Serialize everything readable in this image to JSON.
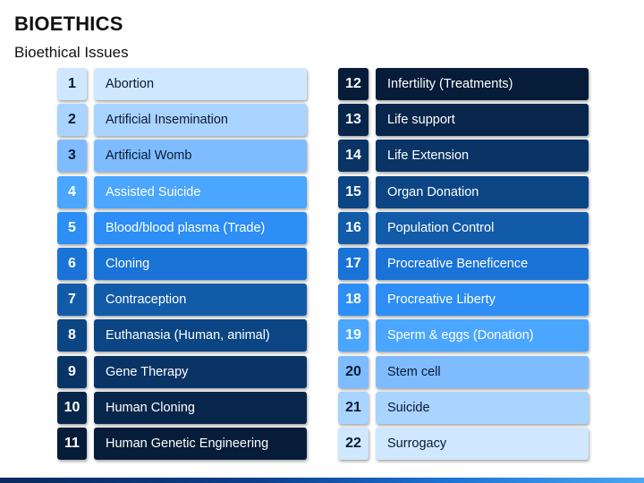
{
  "header": {
    "title": "BIOETHICS",
    "subtitle": "Bioethical Issues"
  },
  "palette": {
    "c1": {
      "bg": "#cfe8ff",
      "fg": "#0a1a33"
    },
    "c2": {
      "bg": "#a9d4ff",
      "fg": "#0a1a33"
    },
    "c3": {
      "bg": "#7fbcff",
      "fg": "#0a1a33"
    },
    "c4": {
      "bg": "#4aa6ff",
      "fg": "#ffffff"
    },
    "c5": {
      "bg": "#2d8ef5",
      "fg": "#ffffff"
    },
    "c6": {
      "bg": "#1a73d6",
      "fg": "#ffffff"
    },
    "c7": {
      "bg": "#125ba8",
      "fg": "#ffffff"
    },
    "c8": {
      "bg": "#0c4584",
      "fg": "#ffffff"
    },
    "c9": {
      "bg": "#0a3466",
      "fg": "#ffffff"
    },
    "c10": {
      "bg": "#08264c",
      "fg": "#ffffff"
    },
    "c11": {
      "bg": "#061c38",
      "fg": "#ffffff"
    }
  },
  "left_items": [
    {
      "num": "1",
      "label": "Abortion",
      "shade": "c1"
    },
    {
      "num": "2",
      "label": "Artificial Insemination",
      "shade": "c2"
    },
    {
      "num": "3",
      "label": "Artificial Womb",
      "shade": "c3"
    },
    {
      "num": "4",
      "label": "Assisted Suicide",
      "shade": "c4"
    },
    {
      "num": "5",
      "label": "Blood/blood plasma (Trade)",
      "shade": "c5"
    },
    {
      "num": "6",
      "label": "Cloning",
      "shade": "c6"
    },
    {
      "num": "7",
      "label": "Contraception",
      "shade": "c7"
    },
    {
      "num": "8",
      "label": "Euthanasia (Human, animal)",
      "shade": "c8"
    },
    {
      "num": "9",
      "label": "Gene Therapy",
      "shade": "c9"
    },
    {
      "num": "10",
      "label": "Human Cloning",
      "shade": "c10"
    },
    {
      "num": "11",
      "label": "Human Genetic Engineering",
      "shade": "c11"
    }
  ],
  "right_items": [
    {
      "num": "12",
      "label": "Infertility (Treatments)",
      "shade": "c11"
    },
    {
      "num": "13",
      "label": "Life support",
      "shade": "c10"
    },
    {
      "num": "14",
      "label": "Life Extension",
      "shade": "c9"
    },
    {
      "num": "15",
      "label": "Organ Donation",
      "shade": "c8"
    },
    {
      "num": "16",
      "label": "Population Control",
      "shade": "c7"
    },
    {
      "num": "17",
      "label": "Procreative Beneficence",
      "shade": "c6"
    },
    {
      "num": "18",
      "label": "Procreative Liberty",
      "shade": "c5"
    },
    {
      "num": "19",
      "label": "Sperm & eggs (Donation)",
      "shade": "c4"
    },
    {
      "num": "20",
      "label": "Stem cell",
      "shade": "c3"
    },
    {
      "num": "21",
      "label": "Suicide",
      "shade": "c2"
    },
    {
      "num": "22",
      "label": "Surrogacy",
      "shade": "c1"
    }
  ]
}
